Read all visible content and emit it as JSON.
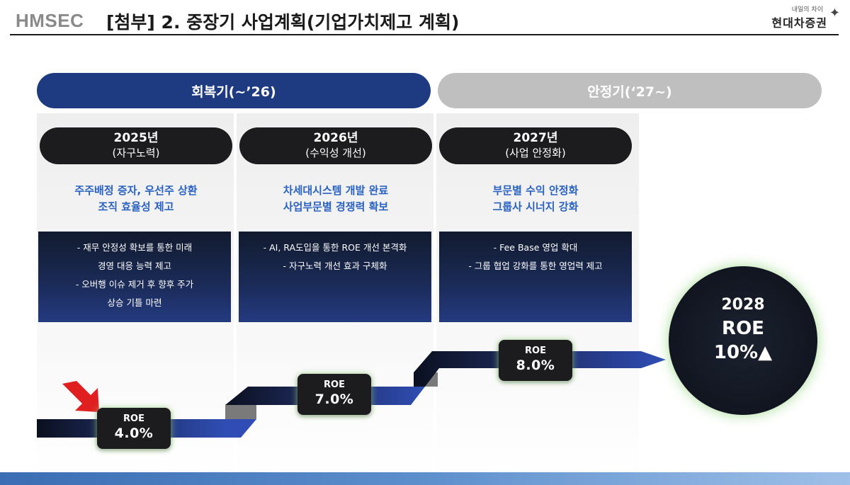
{
  "header": {
    "brand": "HMSEC",
    "title": "[첨부] 2. 중장기 사업계획(기업가치제고 계획)",
    "logo_tagline": "내일의 차이",
    "logo_name": "현대차증권"
  },
  "phases": [
    {
      "label": "회복기(~’26)",
      "color": "#1e3b82"
    },
    {
      "label": "안정기(‘27~)",
      "color": "#bfbfbf"
    }
  ],
  "years": [
    {
      "year": "2025년",
      "subtitle": "(자구노력)",
      "headline": [
        "주주배정 증자, 우선주 상환",
        "조직 효율성 제고"
      ],
      "bullets": [
        "-  재무 안정성 확보를 통한 미래",
        "경영 대응 능력 제고",
        "-  오버행 이슈 제거 후 향후 주가",
        "상승 기틀 마련"
      ],
      "roe_label": "ROE",
      "roe_value": "4.0%"
    },
    {
      "year": "2026년",
      "subtitle": "(수익성 개선)",
      "headline": [
        "차세대시스템 개발 완료",
        "사업부문별 경쟁력 확보"
      ],
      "bullets": [
        "-  AI, RA도입을 통한 ROE 개선 본격화",
        "-  자구노력 개선 효과 구체화"
      ],
      "roe_label": "ROE",
      "roe_value": "7.0%"
    },
    {
      "year": "2027년",
      "subtitle": "(사업 안정화)",
      "headline": [
        "부문별 수익 안정화",
        "그룹사 시너지 강화"
      ],
      "bullets": [
        "- Fee Base 영업 확대",
        "- 그룹 협업 강화를 통한  영업력 제고"
      ],
      "roe_label": "ROE",
      "roe_value": "8.0%"
    }
  ],
  "target": {
    "year": "2028",
    "label": "ROE",
    "value": "10%▲"
  },
  "colors": {
    "accent_blue": "#2a62c4",
    "navy": "#1e3b82",
    "arrow_red": "#e02020"
  }
}
